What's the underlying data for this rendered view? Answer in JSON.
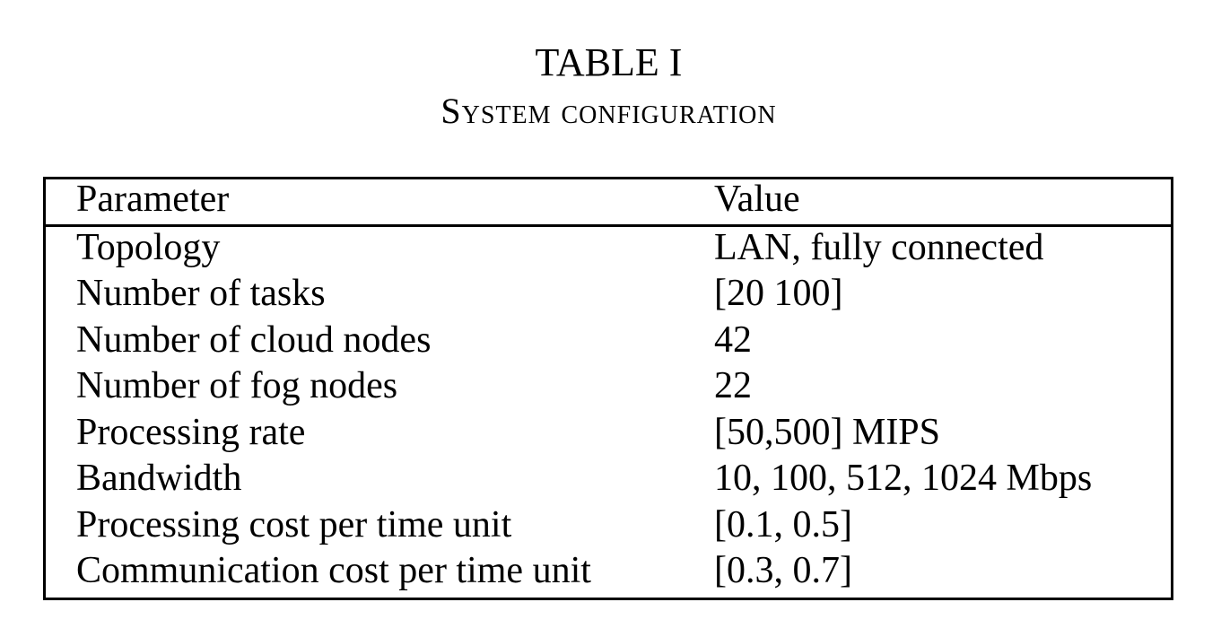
{
  "caption": {
    "number": "TABLE I",
    "title": "System configuration"
  },
  "table": {
    "headers": {
      "parameter": "Parameter",
      "value": "Value"
    },
    "rows": [
      {
        "parameter": "Topology",
        "value": "LAN, fully connected"
      },
      {
        "parameter": "Number of tasks",
        "value": "[20 100]"
      },
      {
        "parameter": "Number of cloud nodes",
        "value": "42"
      },
      {
        "parameter": "Number of fog nodes",
        "value": "22"
      },
      {
        "parameter": "Processing rate",
        "value": "[50,500] MIPS"
      },
      {
        "parameter": "Bandwidth",
        "value": "10, 100, 512, 1024 Mbps"
      },
      {
        "parameter": "Processing cost per time unit",
        "value": "[0.1, 0.5]"
      },
      {
        "parameter": "Communication cost per time unit",
        "value": "[0.3, 0.7]"
      }
    ]
  }
}
